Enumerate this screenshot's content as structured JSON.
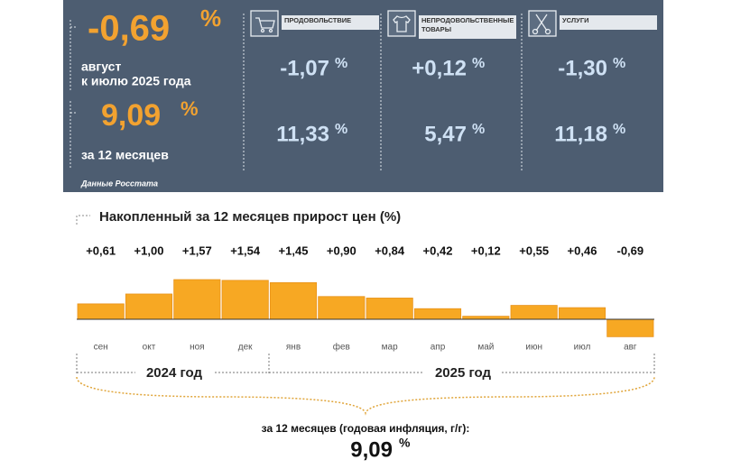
{
  "summary": {
    "month_change": {
      "value": "-0,69",
      "unit": "%"
    },
    "month_caption": [
      "август",
      "к июлю 2025 года"
    ],
    "annual": {
      "value": "9,09",
      "unit": "%"
    },
    "annual_caption": "за 12 месяцев",
    "groups": [
      {
        "label_lines": [
          "ПРОДОВОЛЬСТВИЕ"
        ],
        "month": {
          "value": "-1,07",
          "unit": "%"
        },
        "annual": {
          "value": "11,33",
          "unit": "%"
        }
      },
      {
        "label_lines": [
          "НЕПРОДОВОЛЬСТВЕННЫЕ",
          "ТОВАРЫ"
        ],
        "month": {
          "value": "+0,12",
          "unit": "%"
        },
        "annual": {
          "value": "5,47",
          "unit": "%"
        }
      },
      {
        "label_lines": [
          "УСЛУГИ"
        ],
        "month": {
          "value": "-1,30",
          "unit": "%"
        },
        "annual": {
          "value": "11,18",
          "unit": "%"
        }
      }
    ],
    "source": "Данные Росстата"
  },
  "chart_data": {
    "type": "bar",
    "title": "Накопленный за 12 месяцев прирост цен (%)",
    "categories": [
      "сен",
      "окт",
      "ноя",
      "дек",
      "янв",
      "фев",
      "мар",
      "апр",
      "май",
      "июн",
      "июл",
      "авг"
    ],
    "values": [
      0.61,
      1.0,
      1.57,
      1.54,
      1.45,
      0.9,
      0.84,
      0.42,
      0.12,
      0.55,
      0.46,
      -0.69
    ],
    "value_labels": [
      "+0,61",
      "+1,00",
      "+1,57",
      "+1,54",
      "+1,45",
      "+0,90",
      "+0,84",
      "+0,42",
      "+0,12",
      "+0,55",
      "+0,46",
      "-0,69"
    ],
    "color": "#f7a823",
    "year_labels": [
      "2024 год",
      "2025 год"
    ],
    "footnote": "за 12 месяцев (годовая инфляция, г/г):",
    "footnote_value": {
      "value": "9,09",
      "unit": "%"
    }
  }
}
